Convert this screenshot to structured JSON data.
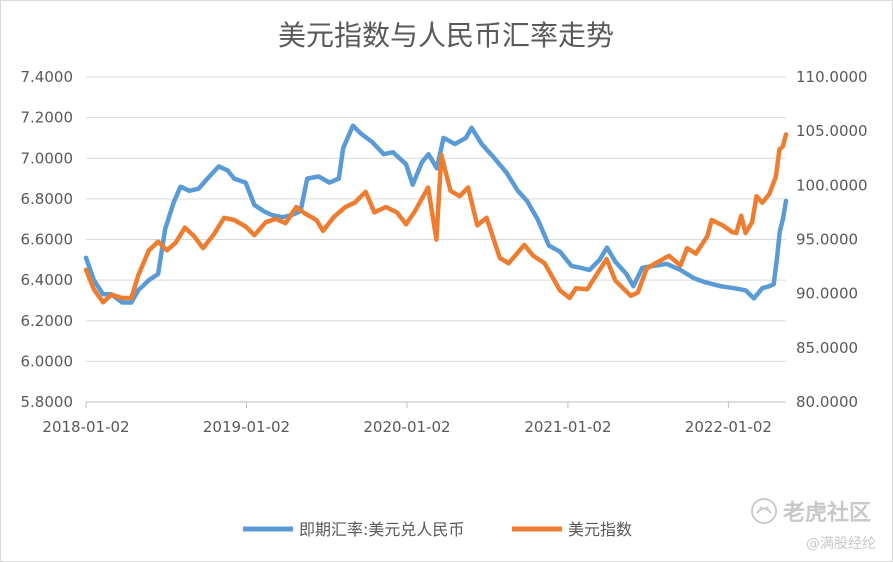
{
  "chart_data": {
    "type": "line",
    "title": "美元指数与人民币汇率走势",
    "x_ticks": [
      "2018-01-02",
      "2019-01-02",
      "2020-01-02",
      "2021-01-02",
      "2022-01-02"
    ],
    "x_range": [
      "2018-01-02",
      "2022-05-13"
    ],
    "y_left": {
      "range": [
        5.8,
        7.4
      ],
      "ticks": [
        "5.8000",
        "6.0000",
        "6.2000",
        "6.4000",
        "6.6000",
        "6.8000",
        "7.0000",
        "7.2000",
        "7.4000"
      ]
    },
    "y_right": {
      "range": [
        80,
        110
      ],
      "ticks": [
        "80.0000",
        "85.0000",
        "90.0000",
        "95.0000",
        "100.0000",
        "105.0000",
        "110.0000"
      ]
    },
    "grid": true,
    "legend_position": "bottom",
    "series": [
      {
        "name": "即期汇率:美元兑人民币",
        "axis": "left",
        "color": "#5b9bd5",
        "points": [
          [
            "2018-01-02",
            6.51
          ],
          [
            "2018-01-20",
            6.4
          ],
          [
            "2018-02-10",
            6.33
          ],
          [
            "2018-03-01",
            6.33
          ],
          [
            "2018-03-25",
            6.29
          ],
          [
            "2018-04-15",
            6.29
          ],
          [
            "2018-05-01",
            6.35
          ],
          [
            "2018-05-25",
            6.4
          ],
          [
            "2018-06-15",
            6.43
          ],
          [
            "2018-07-01",
            6.65
          ],
          [
            "2018-07-20",
            6.78
          ],
          [
            "2018-08-05",
            6.86
          ],
          [
            "2018-08-25",
            6.84
          ],
          [
            "2018-09-15",
            6.85
          ],
          [
            "2018-10-05",
            6.9
          ],
          [
            "2018-10-31",
            6.96
          ],
          [
            "2018-11-20",
            6.94
          ],
          [
            "2018-12-05",
            6.9
          ],
          [
            "2018-12-31",
            6.88
          ],
          [
            "2019-01-20",
            6.77
          ],
          [
            "2019-02-10",
            6.74
          ],
          [
            "2019-03-01",
            6.72
          ],
          [
            "2019-03-25",
            6.71
          ],
          [
            "2019-04-15",
            6.72
          ],
          [
            "2019-05-05",
            6.74
          ],
          [
            "2019-05-20",
            6.9
          ],
          [
            "2019-06-15",
            6.91
          ],
          [
            "2019-07-10",
            6.88
          ],
          [
            "2019-07-31",
            6.9
          ],
          [
            "2019-08-10",
            7.05
          ],
          [
            "2019-09-01",
            7.16
          ],
          [
            "2019-09-20",
            7.12
          ],
          [
            "2019-10-15",
            7.08
          ],
          [
            "2019-11-10",
            7.02
          ],
          [
            "2019-12-01",
            7.03
          ],
          [
            "2019-12-31",
            6.97
          ],
          [
            "2020-01-15",
            6.87
          ],
          [
            "2020-02-05",
            6.98
          ],
          [
            "2020-02-20",
            7.02
          ],
          [
            "2020-03-10",
            6.95
          ],
          [
            "2020-03-25",
            7.1
          ],
          [
            "2020-04-20",
            7.07
          ],
          [
            "2020-05-15",
            7.1
          ],
          [
            "2020-05-28",
            7.15
          ],
          [
            "2020-06-20",
            7.07
          ],
          [
            "2020-07-15",
            7.01
          ],
          [
            "2020-08-15",
            6.93
          ],
          [
            "2020-09-10",
            6.84
          ],
          [
            "2020-10-01",
            6.79
          ],
          [
            "2020-10-25",
            6.7
          ],
          [
            "2020-11-20",
            6.57
          ],
          [
            "2020-12-15",
            6.54
          ],
          [
            "2021-01-10",
            6.47
          ],
          [
            "2021-02-01",
            6.46
          ],
          [
            "2021-02-20",
            6.45
          ],
          [
            "2021-03-15",
            6.5
          ],
          [
            "2021-04-01",
            6.56
          ],
          [
            "2021-04-20",
            6.49
          ],
          [
            "2021-05-15",
            6.43
          ],
          [
            "2021-05-31",
            6.37
          ],
          [
            "2021-06-20",
            6.46
          ],
          [
            "2021-07-15",
            6.47
          ],
          [
            "2021-08-15",
            6.48
          ],
          [
            "2021-09-15",
            6.45
          ],
          [
            "2021-10-15",
            6.41
          ],
          [
            "2021-11-10",
            6.39
          ],
          [
            "2021-12-15",
            6.37
          ],
          [
            "2022-01-15",
            6.36
          ],
          [
            "2022-02-10",
            6.35
          ],
          [
            "2022-03-01",
            6.31
          ],
          [
            "2022-03-20",
            6.36
          ],
          [
            "2022-04-05",
            6.37
          ],
          [
            "2022-04-15",
            6.38
          ],
          [
            "2022-04-22",
            6.5
          ],
          [
            "2022-04-29",
            6.64
          ],
          [
            "2022-05-06",
            6.7
          ],
          [
            "2022-05-13",
            6.79
          ]
        ]
      },
      {
        "name": "美元指数",
        "axis": "right",
        "color": "#ed7d31",
        "points": [
          [
            "2018-01-02",
            92.2
          ],
          [
            "2018-01-20",
            90.4
          ],
          [
            "2018-02-10",
            89.2
          ],
          [
            "2018-03-01",
            89.9
          ],
          [
            "2018-03-25",
            89.6
          ],
          [
            "2018-04-15",
            89.6
          ],
          [
            "2018-05-01",
            91.7
          ],
          [
            "2018-05-25",
            94.0
          ],
          [
            "2018-06-15",
            94.8
          ],
          [
            "2018-07-05",
            94.0
          ],
          [
            "2018-07-25",
            94.7
          ],
          [
            "2018-08-15",
            96.1
          ],
          [
            "2018-09-05",
            95.3
          ],
          [
            "2018-09-25",
            94.2
          ],
          [
            "2018-10-20",
            95.5
          ],
          [
            "2018-11-12",
            97.0
          ],
          [
            "2018-12-05",
            96.8
          ],
          [
            "2018-12-31",
            96.2
          ],
          [
            "2019-01-20",
            95.4
          ],
          [
            "2019-02-15",
            96.6
          ],
          [
            "2019-03-10",
            96.9
          ],
          [
            "2019-04-01",
            96.5
          ],
          [
            "2019-04-25",
            98.0
          ],
          [
            "2019-05-15",
            97.4
          ],
          [
            "2019-06-10",
            96.8
          ],
          [
            "2019-06-25",
            95.8
          ],
          [
            "2019-07-20",
            97.1
          ],
          [
            "2019-08-15",
            98.0
          ],
          [
            "2019-09-05",
            98.4
          ],
          [
            "2019-09-30",
            99.4
          ],
          [
            "2019-10-20",
            97.5
          ],
          [
            "2019-11-15",
            98.0
          ],
          [
            "2019-12-10",
            97.5
          ],
          [
            "2019-12-31",
            96.4
          ],
          [
            "2020-01-20",
            97.6
          ],
          [
            "2020-02-19",
            99.8
          ],
          [
            "2020-03-09",
            95.0
          ],
          [
            "2020-03-20",
            102.8
          ],
          [
            "2020-04-10",
            99.5
          ],
          [
            "2020-05-01",
            99.0
          ],
          [
            "2020-05-20",
            99.8
          ],
          [
            "2020-06-10",
            96.3
          ],
          [
            "2020-07-01",
            97.0
          ],
          [
            "2020-07-31",
            93.3
          ],
          [
            "2020-08-20",
            92.8
          ],
          [
            "2020-09-25",
            94.5
          ],
          [
            "2020-10-15",
            93.5
          ],
          [
            "2020-11-10",
            92.8
          ],
          [
            "2020-12-15",
            90.3
          ],
          [
            "2021-01-06",
            89.6
          ],
          [
            "2021-01-20",
            90.5
          ],
          [
            "2021-02-15",
            90.4
          ],
          [
            "2021-03-31",
            93.2
          ],
          [
            "2021-04-20",
            91.2
          ],
          [
            "2021-05-25",
            89.8
          ],
          [
            "2021-06-10",
            90.1
          ],
          [
            "2021-06-30",
            92.3
          ],
          [
            "2021-07-20",
            92.8
          ],
          [
            "2021-08-20",
            93.5
          ],
          [
            "2021-09-15",
            92.6
          ],
          [
            "2021-09-30",
            94.2
          ],
          [
            "2021-10-20",
            93.7
          ],
          [
            "2021-11-15",
            95.3
          ],
          [
            "2021-11-25",
            96.8
          ],
          [
            "2021-12-20",
            96.3
          ],
          [
            "2022-01-10",
            95.7
          ],
          [
            "2022-01-20",
            95.6
          ],
          [
            "2022-01-31",
            97.2
          ],
          [
            "2022-02-10",
            95.6
          ],
          [
            "2022-02-25",
            96.6
          ],
          [
            "2022-03-07",
            99.0
          ],
          [
            "2022-03-20",
            98.4
          ],
          [
            "2022-04-05",
            99.2
          ],
          [
            "2022-04-20",
            100.8
          ],
          [
            "2022-04-28",
            103.3
          ],
          [
            "2022-05-06",
            103.6
          ],
          [
            "2022-05-13",
            104.7
          ]
        ]
      }
    ],
    "watermark": {
      "brand": "老虎社区",
      "handle": "@满股经纶"
    }
  }
}
